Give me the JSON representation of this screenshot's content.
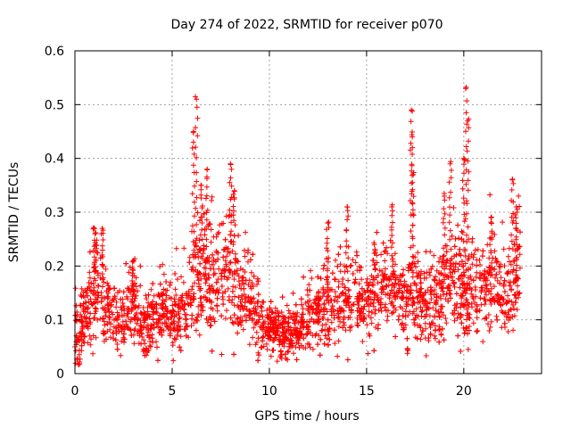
{
  "chart_data": {
    "type": "scatter",
    "title": "Day 274 of 2022, SRMTID for receiver p070",
    "xlabel": "GPS time / hours",
    "ylabel": "SRMTID / TECUs",
    "xlim": [
      0,
      24
    ],
    "ylim": [
      0,
      0.6
    ],
    "x_ticks": [
      0,
      5,
      10,
      15,
      20
    ],
    "x_tick_labels": [
      "0",
      "5",
      "10",
      "15",
      "20"
    ],
    "y_ticks": [
      0,
      0.1,
      0.2,
      0.3,
      0.4,
      0.5,
      0.6
    ],
    "y_tick_labels": [
      "0",
      "0.1",
      "0.2",
      "0.3",
      "0.4",
      "0.5",
      "0.6"
    ],
    "grid": true,
    "marker": "+",
    "color": "#ff0000",
    "data_x_range": [
      0,
      22.9
    ],
    "n_points": 3200,
    "envelope": [
      [
        0.0,
        0.08,
        0.04
      ],
      [
        0.2,
        0.07,
        0.03
      ],
      [
        0.5,
        0.11,
        0.04
      ],
      [
        0.8,
        0.12,
        0.05
      ],
      [
        1.0,
        0.16,
        0.06
      ],
      [
        1.3,
        0.15,
        0.06
      ],
      [
        1.6,
        0.12,
        0.04
      ],
      [
        2.0,
        0.11,
        0.04
      ],
      [
        2.5,
        0.1,
        0.04
      ],
      [
        3.0,
        0.13,
        0.05
      ],
      [
        3.5,
        0.09,
        0.04
      ],
      [
        4.0,
        0.1,
        0.04
      ],
      [
        4.5,
        0.11,
        0.04
      ],
      [
        5.0,
        0.1,
        0.04
      ],
      [
        5.5,
        0.12,
        0.05
      ],
      [
        6.0,
        0.16,
        0.06
      ],
      [
        6.3,
        0.2,
        0.08
      ],
      [
        6.7,
        0.18,
        0.07
      ],
      [
        7.0,
        0.17,
        0.07
      ],
      [
        7.5,
        0.17,
        0.06
      ],
      [
        8.0,
        0.19,
        0.07
      ],
      [
        8.5,
        0.16,
        0.06
      ],
      [
        9.0,
        0.14,
        0.05
      ],
      [
        9.5,
        0.1,
        0.04
      ],
      [
        10.0,
        0.08,
        0.03
      ],
      [
        10.5,
        0.08,
        0.03
      ],
      [
        11.0,
        0.07,
        0.03
      ],
      [
        11.5,
        0.08,
        0.03
      ],
      [
        12.0,
        0.11,
        0.04
      ],
      [
        12.5,
        0.11,
        0.04
      ],
      [
        13.0,
        0.13,
        0.05
      ],
      [
        13.5,
        0.13,
        0.05
      ],
      [
        14.0,
        0.14,
        0.05
      ],
      [
        14.5,
        0.14,
        0.05
      ],
      [
        15.0,
        0.14,
        0.05
      ],
      [
        15.5,
        0.15,
        0.05
      ],
      [
        16.0,
        0.16,
        0.06
      ],
      [
        16.5,
        0.15,
        0.05
      ],
      [
        17.0,
        0.15,
        0.05
      ],
      [
        17.3,
        0.14,
        0.05
      ],
      [
        17.7,
        0.14,
        0.05
      ],
      [
        18.0,
        0.13,
        0.05
      ],
      [
        18.5,
        0.13,
        0.05
      ],
      [
        19.0,
        0.15,
        0.06
      ],
      [
        19.5,
        0.18,
        0.07
      ],
      [
        20.0,
        0.16,
        0.06
      ],
      [
        20.5,
        0.15,
        0.06
      ],
      [
        21.0,
        0.15,
        0.06
      ],
      [
        21.5,
        0.17,
        0.06
      ],
      [
        22.0,
        0.14,
        0.05
      ],
      [
        22.5,
        0.16,
        0.06
      ],
      [
        22.9,
        0.2,
        0.06
      ]
    ],
    "peaks": [
      {
        "x": 1.0,
        "y": 0.27
      },
      {
        "x": 1.4,
        "y": 0.27
      },
      {
        "x": 3.0,
        "y": 0.21
      },
      {
        "x": 6.1,
        "y": 0.45
      },
      {
        "x": 6.25,
        "y": 0.51
      },
      {
        "x": 6.5,
        "y": 0.35
      },
      {
        "x": 6.8,
        "y": 0.38
      },
      {
        "x": 8.0,
        "y": 0.39
      },
      {
        "x": 8.2,
        "y": 0.34
      },
      {
        "x": 13.0,
        "y": 0.28
      },
      {
        "x": 14.0,
        "y": 0.31
      },
      {
        "x": 15.4,
        "y": 0.24
      },
      {
        "x": 16.3,
        "y": 0.31
      },
      {
        "x": 17.3,
        "y": 0.49
      },
      {
        "x": 17.35,
        "y": 0.44
      },
      {
        "x": 17.4,
        "y": 0.37
      },
      {
        "x": 19.3,
        "y": 0.39
      },
      {
        "x": 19.0,
        "y": 0.33
      },
      {
        "x": 20.1,
        "y": 0.53
      },
      {
        "x": 20.2,
        "y": 0.47
      },
      {
        "x": 20.0,
        "y": 0.4
      },
      {
        "x": 21.4,
        "y": 0.29
      },
      {
        "x": 22.5,
        "y": 0.36
      },
      {
        "x": 22.7,
        "y": 0.31
      }
    ],
    "low_points": [
      {
        "x": 0.2,
        "y": 0.015
      },
      {
        "x": 10.6,
        "y": 0.025
      },
      {
        "x": 17.1,
        "y": 0.037
      }
    ]
  }
}
